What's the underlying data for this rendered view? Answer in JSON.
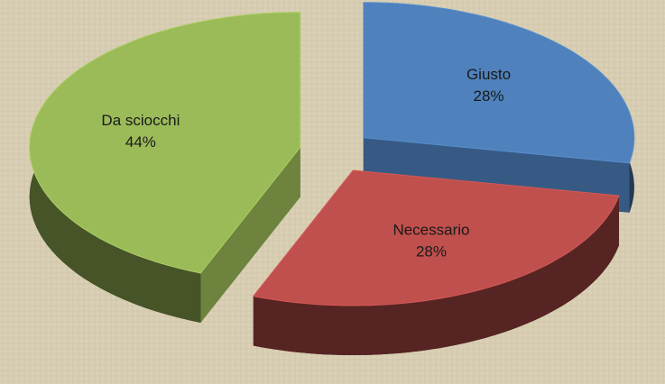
{
  "chart_data": {
    "type": "pie3d",
    "categories": [
      "Giusto",
      "Necessario",
      "Da sciocchi"
    ],
    "values": [
      28,
      28,
      44
    ],
    "value_labels": [
      "28%",
      "28%",
      "44%"
    ],
    "colors": [
      "#4f81bd",
      "#c0504d",
      "#9bbb59"
    ]
  }
}
